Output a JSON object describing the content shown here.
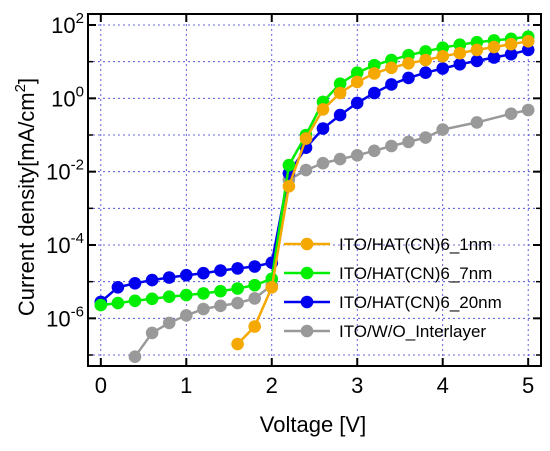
{
  "chart_data": {
    "type": "line",
    "title": "",
    "xlabel": "Voltage [V]",
    "ylabel_main": "Current density[mA/cm",
    "ylabel_sup": "2",
    "ylabel_close": "]",
    "xlim": [
      -0.15,
      5.15
    ],
    "ylim_log10": [
      -7.3,
      2.3
    ],
    "y_scale": "log",
    "grid": true,
    "x_ticks": [
      {
        "value": 0,
        "label": "0"
      },
      {
        "value": 1,
        "label": "1"
      },
      {
        "value": 2,
        "label": "2"
      },
      {
        "value": 3,
        "label": "3"
      },
      {
        "value": 4,
        "label": "4"
      },
      {
        "value": 5,
        "label": "5"
      }
    ],
    "y_ticks": [
      {
        "exp": 2,
        "base": "10",
        "sup": "2"
      },
      {
        "exp": 0,
        "base": "10",
        "sup": "0"
      },
      {
        "exp": -2,
        "base": "10",
        "sup": "-2"
      },
      {
        "exp": -4,
        "base": "10",
        "sup": "-4"
      },
      {
        "exp": -6,
        "base": "10",
        "sup": "-6"
      }
    ],
    "y_minor_grid_exps": [
      1,
      -1,
      -3,
      -5,
      -7
    ],
    "legend_position": "lower-right",
    "series": [
      {
        "name": "ITO/HAT(CN)6_1nm",
        "color": "#f5a800",
        "points": [
          [
            1.6,
            2e-07
          ],
          [
            1.8,
            6e-07
          ],
          [
            2.0,
            7e-06
          ],
          [
            2.2,
            0.004
          ],
          [
            2.4,
            0.08
          ],
          [
            2.6,
            0.5
          ],
          [
            2.8,
            1.4
          ],
          [
            3.0,
            2.8
          ],
          [
            3.2,
            4.8
          ],
          [
            3.4,
            6.8
          ],
          [
            3.6,
            9
          ],
          [
            3.8,
            11
          ],
          [
            4.0,
            14
          ],
          [
            4.2,
            17
          ],
          [
            4.4,
            21
          ],
          [
            4.6,
            25
          ],
          [
            4.8,
            30
          ],
          [
            5.0,
            36
          ]
        ]
      },
      {
        "name": "ITO/HAT(CN)6_7nm",
        "color": "#00ee00",
        "points": [
          [
            0,
            2.3e-06
          ],
          [
            0.2,
            2.6e-06
          ],
          [
            0.4,
            3e-06
          ],
          [
            0.6,
            3.4e-06
          ],
          [
            0.8,
            3.9e-06
          ],
          [
            1.0,
            4.3e-06
          ],
          [
            1.2,
            4.8e-06
          ],
          [
            1.4,
            5.5e-06
          ],
          [
            1.6,
            6.5e-06
          ],
          [
            1.8,
            8e-06
          ],
          [
            2.0,
            1.2e-05
          ],
          [
            2.2,
            0.015
          ],
          [
            2.4,
            0.1
          ],
          [
            2.6,
            0.8
          ],
          [
            2.8,
            2.5
          ],
          [
            3.0,
            5
          ],
          [
            3.2,
            8
          ],
          [
            3.4,
            11
          ],
          [
            3.6,
            15
          ],
          [
            3.8,
            19
          ],
          [
            4.0,
            24
          ],
          [
            4.2,
            29
          ],
          [
            4.4,
            34
          ],
          [
            4.6,
            38
          ],
          [
            4.8,
            42
          ],
          [
            5.0,
            48
          ]
        ]
      },
      {
        "name": "ITO/HAT(CN)6_20nm",
        "color": "#0000ee",
        "points": [
          [
            0,
            2.8e-06
          ],
          [
            0.2,
            7e-06
          ],
          [
            0.4,
            9e-06
          ],
          [
            0.6,
            1.1e-05
          ],
          [
            0.8,
            1.3e-05
          ],
          [
            1.0,
            1.5e-05
          ],
          [
            1.2,
            1.7e-05
          ],
          [
            1.4,
            2e-05
          ],
          [
            1.6,
            2.3e-05
          ],
          [
            1.8,
            2.6e-05
          ],
          [
            2.0,
            3.3e-05
          ],
          [
            2.2,
            0.009
          ],
          [
            2.4,
            0.045
          ],
          [
            2.6,
            0.15
          ],
          [
            2.8,
            0.35
          ],
          [
            3.0,
            0.75
          ],
          [
            3.2,
            1.4
          ],
          [
            3.4,
            2.4
          ],
          [
            3.6,
            3.6
          ],
          [
            3.8,
            5
          ],
          [
            4.0,
            6.5
          ],
          [
            4.2,
            8.5
          ],
          [
            4.4,
            10.5
          ],
          [
            4.6,
            13
          ],
          [
            4.8,
            16
          ],
          [
            5.0,
            21
          ]
        ]
      },
      {
        "name": "ITO/W/O_Interlayer",
        "color": "#999999",
        "points": [
          [
            0.4,
            9e-08
          ],
          [
            0.6,
            4e-07
          ],
          [
            0.8,
            7.5e-07
          ],
          [
            1.0,
            1.2e-06
          ],
          [
            1.2,
            1.8e-06
          ],
          [
            1.4,
            2.2e-06
          ],
          [
            1.6,
            2.6e-06
          ],
          [
            1.8,
            3.5e-06
          ],
          [
            2.0,
            8e-06
          ],
          [
            2.2,
            0.006
          ],
          [
            2.4,
            0.011
          ],
          [
            2.6,
            0.017
          ],
          [
            2.8,
            0.022
          ],
          [
            3.0,
            0.028
          ],
          [
            3.2,
            0.037
          ],
          [
            3.4,
            0.05
          ],
          [
            3.6,
            0.065
          ],
          [
            3.8,
            0.085
          ],
          [
            4.0,
            0.14
          ],
          [
            4.4,
            0.22
          ],
          [
            4.8,
            0.38
          ],
          [
            5.0,
            0.48
          ]
        ]
      }
    ]
  }
}
